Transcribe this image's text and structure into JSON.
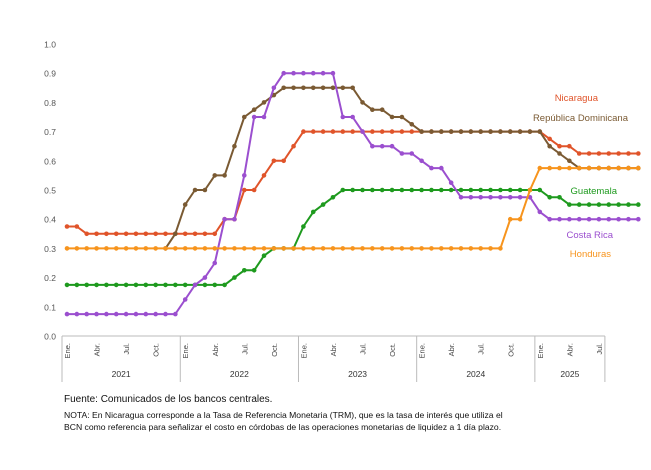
{
  "chart_data": {
    "type": "line",
    "ylim": [
      0,
      1.0
    ],
    "y_ticks": [
      "0.0",
      "0.1",
      "0.2",
      "0.3",
      "0.4",
      "0.5",
      "0.6",
      "0.7",
      "0.8",
      "0.9",
      "1.0"
    ],
    "x_tick_labels": [
      "Ene.",
      "Abr.",
      "Jul.",
      "Oct.",
      "Ene.",
      "Abr.",
      "Jul.",
      "Oct.",
      "Ene.",
      "Abr.",
      "Jul.",
      "Oct.",
      "Ene.",
      "Abr.",
      "Jul.",
      "Oct.",
      "Ene.",
      "Abr.",
      "Jul."
    ],
    "years": [
      "2021",
      "2022",
      "2023",
      "2024",
      "2025"
    ],
    "months_per_year": [
      12,
      12,
      12,
      12,
      7
    ],
    "grid": false,
    "series": [
      {
        "name": "Nicaragua",
        "color": "#e0542a",
        "values": [
          0.375,
          0.375,
          0.35,
          0.35,
          0.35,
          0.35,
          0.35,
          0.35,
          0.35,
          0.35,
          0.35,
          0.35,
          0.35,
          0.35,
          0.35,
          0.35,
          0.4,
          0.4,
          0.5,
          0.5,
          0.55,
          0.6,
          0.6,
          0.65,
          0.7,
          0.7,
          0.7,
          0.7,
          0.7,
          0.7,
          0.7,
          0.7,
          0.7,
          0.7,
          0.7,
          0.7,
          0.7,
          0.7,
          0.7,
          0.7,
          0.7,
          0.7,
          0.7,
          0.7,
          0.7,
          0.7,
          0.7,
          0.7,
          0.7,
          0.675,
          0.65,
          0.65,
          0.625,
          0.625,
          0.625,
          0.625,
          0.625,
          0.625,
          0.625
        ]
      },
      {
        "name": "República Dominicana",
        "color": "#7a5a33",
        "values": [
          null,
          null,
          null,
          null,
          null,
          null,
          null,
          null,
          null,
          null,
          0.3,
          0.35,
          0.45,
          0.5,
          0.5,
          0.55,
          0.55,
          0.65,
          0.75,
          0.775,
          0.8,
          0.825,
          0.85,
          0.85,
          0.85,
          0.85,
          0.85,
          0.85,
          0.85,
          0.85,
          0.8,
          0.775,
          0.775,
          0.75,
          0.75,
          0.725,
          0.7,
          0.7,
          0.7,
          0.7,
          0.7,
          0.7,
          0.7,
          0.7,
          0.7,
          0.7,
          0.7,
          0.7,
          0.7,
          0.65,
          0.625,
          0.6,
          0.575,
          0.575,
          0.575,
          0.575,
          0.575,
          0.575,
          0.575
        ]
      },
      {
        "name": "Guatemala",
        "color": "#1e9a1e",
        "values": [
          0.175,
          0.175,
          0.175,
          0.175,
          0.175,
          0.175,
          0.175,
          0.175,
          0.175,
          0.175,
          0.175,
          0.175,
          0.175,
          0.175,
          0.175,
          0.175,
          0.175,
          0.2,
          0.225,
          0.225,
          0.275,
          0.3,
          0.3,
          0.3,
          0.375,
          0.425,
          0.45,
          0.475,
          0.5,
          0.5,
          0.5,
          0.5,
          0.5,
          0.5,
          0.5,
          0.5,
          0.5,
          0.5,
          0.5,
          0.5,
          0.5,
          0.5,
          0.5,
          0.5,
          0.5,
          0.5,
          0.5,
          0.5,
          0.5,
          0.475,
          0.475,
          0.45,
          0.45,
          0.45,
          0.45,
          0.45,
          0.45,
          0.45,
          0.45
        ]
      },
      {
        "name": "Costa Rica",
        "color": "#9b4fcf",
        "values": [
          0.075,
          0.075,
          0.075,
          0.075,
          0.075,
          0.075,
          0.075,
          0.075,
          0.075,
          0.075,
          0.075,
          0.075,
          0.125,
          0.175,
          0.2,
          0.25,
          0.4,
          0.4,
          0.55,
          0.75,
          0.75,
          0.85,
          0.9,
          0.9,
          0.9,
          0.9,
          0.9,
          0.9,
          0.75,
          0.75,
          0.7,
          0.65,
          0.65,
          0.65,
          0.625,
          0.625,
          0.6,
          0.575,
          0.575,
          0.525,
          0.475,
          0.475,
          0.475,
          0.475,
          0.475,
          0.475,
          0.475,
          0.475,
          0.425,
          0.4,
          0.4,
          0.4,
          0.4,
          0.4,
          0.4,
          0.4,
          0.4,
          0.4,
          0.4
        ]
      },
      {
        "name": "Honduras",
        "color": "#f7941d",
        "values": [
          0.3,
          0.3,
          0.3,
          0.3,
          0.3,
          0.3,
          0.3,
          0.3,
          0.3,
          0.3,
          0.3,
          0.3,
          0.3,
          0.3,
          0.3,
          0.3,
          0.3,
          0.3,
          0.3,
          0.3,
          0.3,
          0.3,
          0.3,
          0.3,
          0.3,
          0.3,
          0.3,
          0.3,
          0.3,
          0.3,
          0.3,
          0.3,
          0.3,
          0.3,
          0.3,
          0.3,
          0.3,
          0.3,
          0.3,
          0.3,
          0.3,
          0.3,
          0.3,
          0.3,
          0.3,
          0.4,
          0.4,
          0.5,
          0.575,
          0.575,
          0.575,
          0.575,
          0.575,
          0.575,
          0.575,
          0.575,
          0.575,
          0.575,
          0.575
        ]
      }
    ]
  },
  "footer": {
    "source": "Fuente: Comunicados de los bancos centrales.",
    "note": "NOTA: En Nicaragua corresponde a la Tasa de Referencia Monetaria (TRM), que es la tasa de interés que utiliza el BCN como referencia para señalizar el costo en córdobas de las operaciones monetarias de liquidez a 1 día plazo."
  }
}
